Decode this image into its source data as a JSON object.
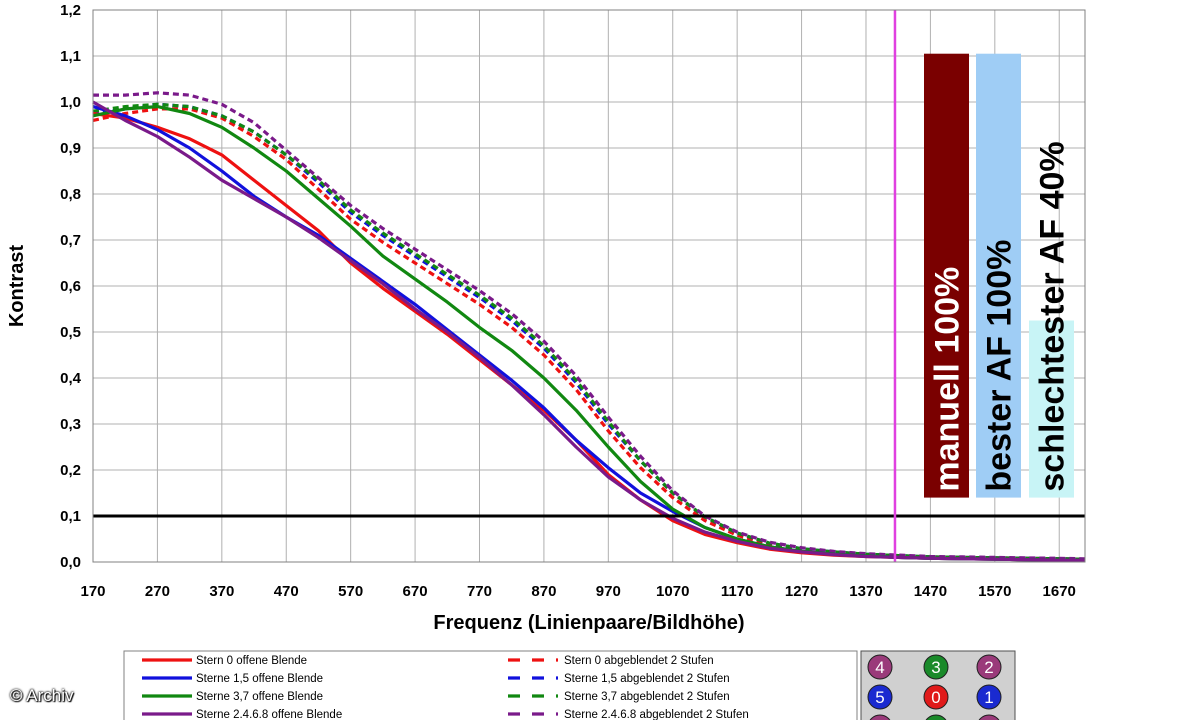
{
  "chart_data": {
    "type": "line",
    "xlabel": "Frequenz (Linienpaare/Bildhöhe)",
    "ylabel": "Kontrast",
    "xlim": [
      170,
      1710
    ],
    "ylim": [
      0,
      1.2
    ],
    "x_ticks": [
      "170",
      "270",
      "370",
      "470",
      "570",
      "670",
      "770",
      "870",
      "970",
      "1070",
      "1170",
      "1270",
      "1370",
      "1470",
      "1570",
      "1670"
    ],
    "y_ticks": [
      "0,0",
      "0,1",
      "0,2",
      "0,3",
      "0,4",
      "0,5",
      "0,6",
      "0,7",
      "0,8",
      "0,9",
      "1,0",
      "1,1",
      "1,2"
    ],
    "grid": true,
    "reference_line": {
      "y": 0.1,
      "color": "#000000"
    },
    "marker_line": {
      "x": 1415,
      "color": "#e040e0"
    },
    "bars": [
      {
        "label": "manuell 100%",
        "color": "#7a0000",
        "text_color": "#ffffff",
        "top": 1.105,
        "bottom": 0.14
      },
      {
        "label": "bester AF 100%",
        "color": "#9fcdf5",
        "text_color": "#000000",
        "top": 1.105,
        "bottom": 0.14
      },
      {
        "label": "schlechtester AF 40%",
        "color": "#c8f4f6",
        "text_color": "#000000",
        "top": 0.525,
        "bottom": 0.14
      }
    ],
    "series": [
      {
        "name": "Stern 0 offene Blende",
        "color": "#ee1111",
        "dash": false,
        "x": [
          170,
          220,
          270,
          320,
          370,
          420,
          470,
          520,
          570,
          620,
          670,
          720,
          770,
          820,
          870,
          920,
          970,
          1020,
          1070,
          1120,
          1170,
          1220,
          1270,
          1320,
          1370,
          1420,
          1470,
          1520,
          1570,
          1620,
          1670,
          1710
        ],
        "y": [
          0.975,
          0.965,
          0.945,
          0.92,
          0.885,
          0.83,
          0.775,
          0.72,
          0.65,
          0.595,
          0.545,
          0.495,
          0.44,
          0.385,
          0.33,
          0.265,
          0.19,
          0.135,
          0.09,
          0.06,
          0.042,
          0.028,
          0.02,
          0.015,
          0.012,
          0.01,
          0.008,
          0.007,
          0.006,
          0.005,
          0.004,
          0.004
        ]
      },
      {
        "name": "Sterne 1,5 offene Blende",
        "color": "#1111dd",
        "dash": false,
        "x": [
          170,
          220,
          270,
          320,
          370,
          420,
          470,
          520,
          570,
          620,
          670,
          720,
          770,
          820,
          870,
          920,
          970,
          1020,
          1070,
          1120,
          1170,
          1220,
          1270,
          1320,
          1370,
          1420,
          1470,
          1520,
          1570,
          1620,
          1670,
          1710
        ],
        "y": [
          0.99,
          0.97,
          0.94,
          0.9,
          0.85,
          0.795,
          0.75,
          0.71,
          0.66,
          0.61,
          0.56,
          0.505,
          0.45,
          0.395,
          0.335,
          0.265,
          0.205,
          0.15,
          0.11,
          0.075,
          0.05,
          0.033,
          0.023,
          0.017,
          0.013,
          0.01,
          0.008,
          0.007,
          0.006,
          0.005,
          0.004,
          0.004
        ]
      },
      {
        "name": "Sterne 3,7 offene Blende",
        "color": "#118811",
        "dash": false,
        "x": [
          170,
          220,
          270,
          320,
          370,
          420,
          470,
          520,
          570,
          620,
          670,
          720,
          770,
          820,
          870,
          920,
          970,
          1020,
          1070,
          1120,
          1170,
          1220,
          1270,
          1320,
          1370,
          1420,
          1470,
          1520,
          1570,
          1620,
          1670,
          1710
        ],
        "y": [
          0.97,
          0.985,
          0.99,
          0.975,
          0.945,
          0.9,
          0.85,
          0.79,
          0.73,
          0.665,
          0.615,
          0.565,
          0.51,
          0.46,
          0.4,
          0.33,
          0.25,
          0.175,
          0.115,
          0.075,
          0.05,
          0.033,
          0.023,
          0.017,
          0.013,
          0.01,
          0.008,
          0.007,
          0.006,
          0.005,
          0.004,
          0.004
        ]
      },
      {
        "name": "Sterne 2,4,6,8 offene Blende",
        "color": "#7a1a8a",
        "dash": false,
        "x": [
          170,
          220,
          270,
          320,
          370,
          420,
          470,
          520,
          570,
          620,
          670,
          720,
          770,
          820,
          870,
          920,
          970,
          1020,
          1070,
          1120,
          1170,
          1220,
          1270,
          1320,
          1370,
          1420,
          1470,
          1520,
          1570,
          1620,
          1670,
          1710
        ],
        "y": [
          1.0,
          0.96,
          0.925,
          0.88,
          0.83,
          0.79,
          0.75,
          0.705,
          0.655,
          0.605,
          0.55,
          0.5,
          0.445,
          0.385,
          0.32,
          0.25,
          0.185,
          0.135,
          0.095,
          0.065,
          0.045,
          0.03,
          0.022,
          0.016,
          0.012,
          0.01,
          0.008,
          0.007,
          0.006,
          0.005,
          0.004,
          0.004
        ]
      },
      {
        "name": "Stern 0 abgeblendet 2 Stufen",
        "color": "#ee1111",
        "dash": true,
        "x": [
          170,
          220,
          270,
          320,
          370,
          420,
          470,
          520,
          570,
          620,
          670,
          720,
          770,
          820,
          870,
          920,
          970,
          1020,
          1070,
          1120,
          1170,
          1220,
          1270,
          1320,
          1370,
          1420,
          1470,
          1520,
          1570,
          1620,
          1670,
          1710
        ],
        "y": [
          0.96,
          0.975,
          0.985,
          0.985,
          0.965,
          0.925,
          0.875,
          0.81,
          0.745,
          0.695,
          0.65,
          0.605,
          0.56,
          0.51,
          0.45,
          0.375,
          0.285,
          0.205,
          0.14,
          0.09,
          0.058,
          0.038,
          0.027,
          0.02,
          0.016,
          0.013,
          0.011,
          0.01,
          0.009,
          0.008,
          0.007,
          0.006
        ]
      },
      {
        "name": "Sterne 1,5 abgeblendet 2 Stufen",
        "color": "#1111dd",
        "dash": true,
        "x": [
          170,
          220,
          270,
          320,
          370,
          420,
          470,
          520,
          570,
          620,
          670,
          720,
          770,
          820,
          870,
          920,
          970,
          1020,
          1070,
          1120,
          1170,
          1220,
          1270,
          1320,
          1370,
          1420,
          1470,
          1520,
          1570,
          1620,
          1670,
          1710
        ],
        "y": [
          0.975,
          0.985,
          0.995,
          0.99,
          0.97,
          0.935,
          0.885,
          0.825,
          0.76,
          0.71,
          0.665,
          0.62,
          0.575,
          0.525,
          0.465,
          0.39,
          0.3,
          0.22,
          0.15,
          0.098,
          0.063,
          0.041,
          0.029,
          0.022,
          0.017,
          0.014,
          0.011,
          0.01,
          0.009,
          0.008,
          0.007,
          0.006
        ]
      },
      {
        "name": "Sterne 3,7 abgeblendet 2 Stufen",
        "color": "#118811",
        "dash": true,
        "x": [
          170,
          220,
          270,
          320,
          370,
          420,
          470,
          520,
          570,
          620,
          670,
          720,
          770,
          820,
          870,
          920,
          970,
          1020,
          1070,
          1120,
          1170,
          1220,
          1270,
          1320,
          1370,
          1420,
          1470,
          1520,
          1570,
          1620,
          1670,
          1710
        ],
        "y": [
          0.98,
          0.99,
          0.995,
          0.99,
          0.97,
          0.935,
          0.885,
          0.83,
          0.765,
          0.715,
          0.67,
          0.625,
          0.58,
          0.53,
          0.47,
          0.395,
          0.305,
          0.22,
          0.15,
          0.098,
          0.063,
          0.041,
          0.029,
          0.022,
          0.017,
          0.014,
          0.011,
          0.01,
          0.009,
          0.008,
          0.007,
          0.006
        ]
      },
      {
        "name": "Sterne 2,4,6,8 abgeblendet 2 Stufen",
        "color": "#7a1a8a",
        "dash": true,
        "x": [
          170,
          220,
          270,
          320,
          370,
          420,
          470,
          520,
          570,
          620,
          670,
          720,
          770,
          820,
          870,
          920,
          970,
          1020,
          1070,
          1120,
          1170,
          1220,
          1270,
          1320,
          1370,
          1420,
          1470,
          1520,
          1570,
          1620,
          1670,
          1710
        ],
        "y": [
          1.015,
          1.015,
          1.02,
          1.015,
          0.995,
          0.955,
          0.895,
          0.835,
          0.775,
          0.725,
          0.68,
          0.635,
          0.59,
          0.54,
          0.48,
          0.405,
          0.315,
          0.23,
          0.155,
          0.1,
          0.065,
          0.043,
          0.031,
          0.023,
          0.018,
          0.015,
          0.012,
          0.011,
          0.01,
          0.009,
          0.008,
          0.007
        ]
      }
    ],
    "legend_placement": "bottom"
  },
  "legend": {
    "items": [
      {
        "label": "Stern 0 offene Blende",
        "color": "#ee1111",
        "dash": false
      },
      {
        "label": "Sterne 1,5 offene Blende",
        "color": "#1111dd",
        "dash": false
      },
      {
        "label": "Sterne 3,7 offene Blende",
        "color": "#118811",
        "dash": false
      },
      {
        "label": "Sterne 2.4.6.8 offene Blende",
        "color": "#7a1a8a",
        "dash": false
      },
      {
        "label": "Stern 0 abgeblendet 2 Stufen",
        "color": "#ee1111",
        "dash": true
      },
      {
        "label": "Sterne 1,5 abgeblendet 2 Stufen",
        "color": "#1111dd",
        "dash": true
      },
      {
        "label": "Sterne 3,7 abgeblendet 2 Stufen",
        "color": "#118811",
        "dash": true
      },
      {
        "label": "Sterne 2.4.6.8 abgeblendet 2 Stufen",
        "color": "#7a1a8a",
        "dash": true
      }
    ]
  },
  "star_map": {
    "rows": [
      [
        {
          "label": "4",
          "color": "#9a3a7a"
        },
        {
          "label": "3",
          "color": "#1a8a2a"
        },
        {
          "label": "2",
          "color": "#9a3a7a"
        }
      ],
      [
        {
          "label": "5",
          "color": "#1a2ad0"
        },
        {
          "label": "0",
          "color": "#e01a1a"
        },
        {
          "label": "1",
          "color": "#1a2ad0"
        }
      ],
      [
        {
          "label": "",
          "color": "#9a3a7a"
        },
        {
          "label": "",
          "color": "#1a8a2a"
        },
        {
          "label": "",
          "color": "#9a3a7a"
        }
      ]
    ]
  },
  "credit": "© Archiv"
}
